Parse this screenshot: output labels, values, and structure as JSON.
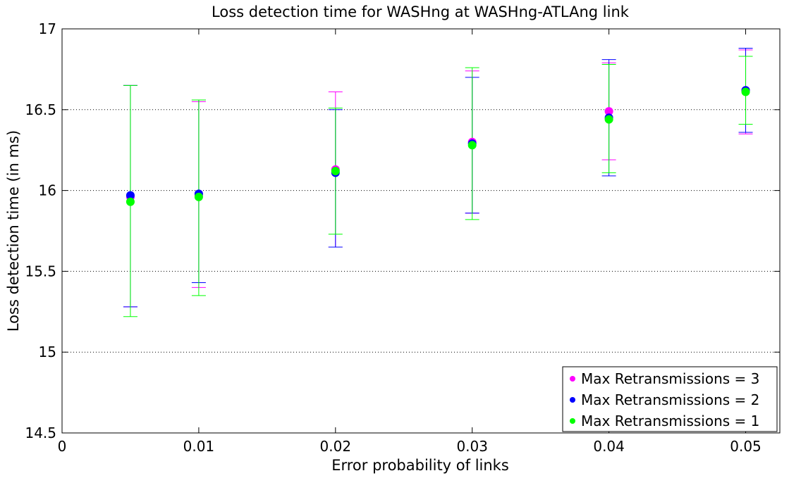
{
  "chart_data": {
    "type": "scatter",
    "title": "Loss detection time for WASHng at WASHng-ATLAng link",
    "xlabel": "Error probability of links",
    "ylabel": "Loss detection time (in ms)",
    "xlim": [
      0,
      0.0525
    ],
    "ylim": [
      14.5,
      17
    ],
    "xticks": [
      0,
      0.01,
      0.02,
      0.03,
      0.04,
      0.05
    ],
    "xtick_labels": [
      "0",
      "0.01",
      "0.02",
      "0.03",
      "0.04",
      "0.05"
    ],
    "yticks": [
      14.5,
      15,
      15.5,
      16,
      16.5,
      17
    ],
    "ytick_labels": [
      "14.5",
      "15",
      "15.5",
      "16",
      "16.5",
      "17"
    ],
    "grid": "horizontal dotted",
    "legend_position": "bottom-right",
    "error_bars": true,
    "series": [
      {
        "name": "Max Retransmissions = 3",
        "color": "#ff00ff",
        "x": [
          0.005,
          0.01,
          0.02,
          0.03,
          0.04,
          0.05
        ],
        "y": [
          15.96,
          15.97,
          16.13,
          16.3,
          16.49,
          16.62
        ],
        "err_low": [
          15.28,
          15.4,
          15.65,
          15.86,
          16.19,
          16.35
        ],
        "err_high": [
          16.65,
          16.55,
          16.61,
          16.74,
          16.79,
          16.87
        ]
      },
      {
        "name": "Max Retransmissions = 2",
        "color": "#0000ff",
        "x": [
          0.005,
          0.01,
          0.02,
          0.03,
          0.04,
          0.05
        ],
        "y": [
          15.97,
          15.98,
          16.11,
          16.29,
          16.45,
          16.62
        ],
        "err_low": [
          15.28,
          15.43,
          15.65,
          15.86,
          16.09,
          16.36
        ],
        "err_high": [
          16.65,
          16.56,
          16.5,
          16.7,
          16.81,
          16.88
        ]
      },
      {
        "name": "Max Retransmissions = 1",
        "color": "#00ff00",
        "x": [
          0.005,
          0.01,
          0.02,
          0.03,
          0.04,
          0.05
        ],
        "y": [
          15.93,
          15.96,
          16.12,
          16.28,
          16.44,
          16.61
        ],
        "err_low": [
          15.22,
          15.35,
          15.73,
          15.82,
          16.11,
          16.41
        ],
        "err_high": [
          16.65,
          16.56,
          16.51,
          16.76,
          16.78,
          16.83
        ]
      }
    ]
  }
}
